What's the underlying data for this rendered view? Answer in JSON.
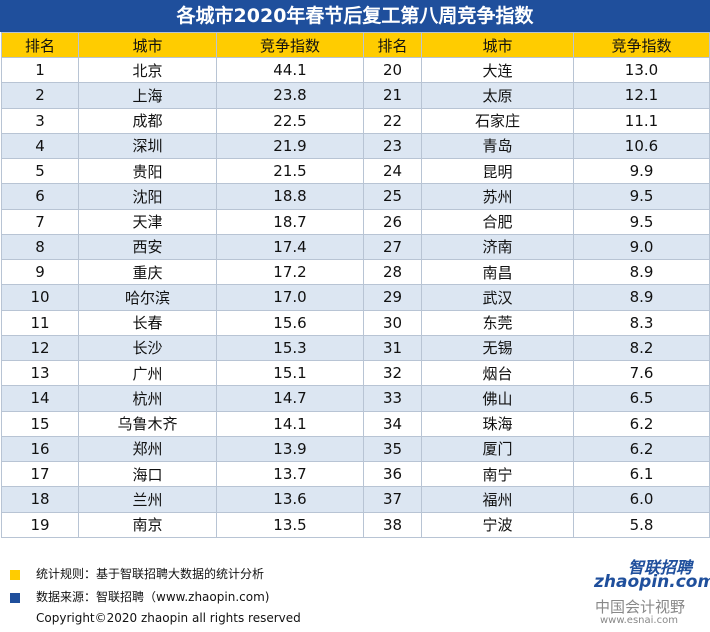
{
  "title": "各城市2020年春节后复工第八周竞争指数",
  "table": {
    "header": [
      "排名",
      "城市",
      "竞争指数",
      "排名",
      "城市",
      "竞争指数"
    ],
    "rows": [
      [
        "1",
        "北京",
        "44.1",
        "20",
        "大连",
        "13.0"
      ],
      [
        "2",
        "上海",
        "23.8",
        "21",
        "太原",
        "12.1"
      ],
      [
        "3",
        "成都",
        "22.5",
        "22",
        "石家庄",
        "11.1"
      ],
      [
        "4",
        "深圳",
        "21.9",
        "23",
        "青岛",
        "10.6"
      ],
      [
        "5",
        "贵阳",
        "21.5",
        "24",
        "昆明",
        "9.9"
      ],
      [
        "6",
        "沈阳",
        "18.8",
        "25",
        "苏州",
        "9.5"
      ],
      [
        "7",
        "天津",
        "18.7",
        "26",
        "合肥",
        "9.5"
      ],
      [
        "8",
        "西安",
        "17.4",
        "27",
        "济南",
        "9.0"
      ],
      [
        "9",
        "重庆",
        "17.2",
        "28",
        "南昌",
        "8.9"
      ],
      [
        "10",
        "哈尔滨",
        "17.0",
        "29",
        "武汉",
        "8.9"
      ],
      [
        "11",
        "长春",
        "15.6",
        "30",
        "东莞",
        "8.3"
      ],
      [
        "12",
        "长沙",
        "15.3",
        "31",
        "无锡",
        "8.2"
      ],
      [
        "13",
        "广州",
        "15.1",
        "32",
        "烟台",
        "7.6"
      ],
      [
        "14",
        "杭州",
        "14.7",
        "33",
        "佛山",
        "6.5"
      ],
      [
        "15",
        "乌鲁木齐",
        "14.1",
        "34",
        "珠海",
        "6.2"
      ],
      [
        "16",
        "郑州",
        "13.9",
        "35",
        "厦门",
        "6.2"
      ],
      [
        "17",
        "海口",
        "13.7",
        "36",
        "南宁",
        "6.1"
      ],
      [
        "18",
        "兰州",
        "13.6",
        "37",
        "福州",
        "6.0"
      ],
      [
        "19",
        "南京",
        "13.5",
        "38",
        "宁波",
        "5.8"
      ]
    ]
  },
  "footer": {
    "rule": "统计规则：基于智联招聘大数据的统计分析",
    "source": "数据来源：智联招聘（www.zhaopin.com)",
    "copyright": "Copyright©2020 zhaopin all rights reserved"
  },
  "logo": {
    "name": "智联招聘",
    "site": "zhaopin.com"
  },
  "watermark": {
    "name": "中国会计视野",
    "site": "www.esnai.com"
  }
}
